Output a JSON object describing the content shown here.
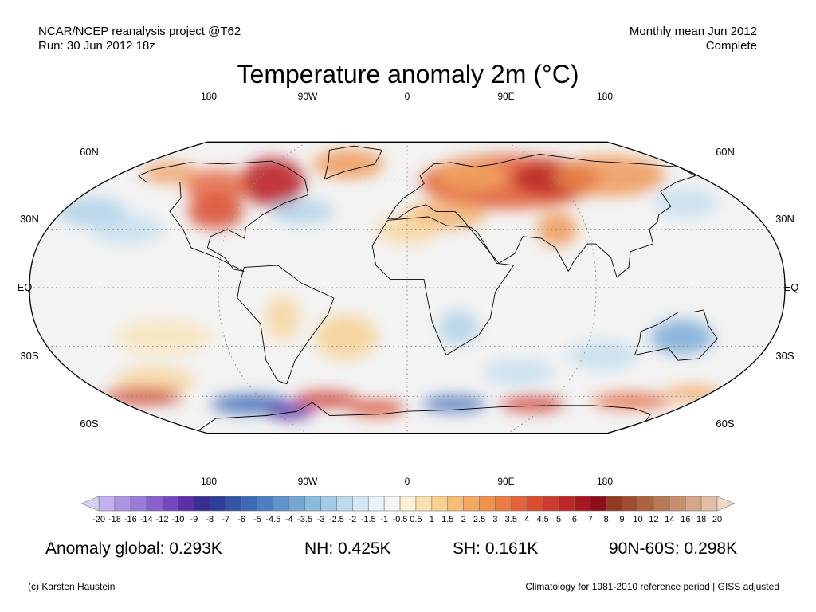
{
  "header": {
    "left_line1": "NCAR/NCEP reanalysis project @T62",
    "left_line2": "Run: 30 Jun 2012 18z",
    "right_line1": "Monthly mean Jun 2012",
    "right_line2": "Complete"
  },
  "title": "Temperature anomaly 2m (°C)",
  "map": {
    "projection": "Robinson (approx.), centered on 0°",
    "top_longitude_labels": [
      "180",
      "90W",
      "0",
      "90E",
      "180"
    ],
    "bottom_longitude_labels": [
      "180",
      "90W",
      "0",
      "90E",
      "180"
    ],
    "left_latitude_labels": [
      "60N",
      "30N",
      "EQ",
      "30S",
      "60S"
    ],
    "right_latitude_labels": [
      "60N",
      "30N",
      "EQ",
      "30S",
      "60S"
    ],
    "gridlines": "dotted",
    "colors": {
      "ocean_land_background": "#f2f2f2",
      "coastlines": "#000000"
    }
  },
  "colorbar": {
    "tick_labels": [
      "-20",
      "-18",
      "-16",
      "-14",
      "-12",
      "-10",
      "-9",
      "-8",
      "-7",
      "-6",
      "-5",
      "-4.5",
      "-4",
      "-3.5",
      "-3",
      "-2.5",
      "-2",
      "-1.5",
      "-1",
      "-0.5",
      "0.5",
      "1",
      "1.5",
      "2",
      "2.5",
      "3",
      "3.5",
      "4",
      "4.5",
      "5",
      "6",
      "7",
      "8",
      "9",
      "10",
      "12",
      "14",
      "16",
      "18",
      "20"
    ],
    "colors": [
      "#d8cef2",
      "#c2b1ec",
      "#ad94e4",
      "#9a7bdc",
      "#8860d0",
      "#7349c0",
      "#5a30a8",
      "#3a2e90",
      "#2e3f98",
      "#3355a8",
      "#3d69b6",
      "#4d7ec2",
      "#5f93cc",
      "#74a7d6",
      "#8bbadf",
      "#a3cbe6",
      "#bcdaee",
      "#d3e7f4",
      "#e8f2f9",
      "#f5f5f5",
      "#fbf0d4",
      "#fae1b0",
      "#f8d090",
      "#f6bd77",
      "#f3a862",
      "#ef9250",
      "#ea7b44",
      "#e3633b",
      "#d94d33",
      "#cd3a2e",
      "#bb2628",
      "#a51a22",
      "#8b0e1a",
      "#923a24",
      "#a04d30",
      "#ad6240",
      "#ba7856",
      "#c78f6e",
      "#d4a788",
      "#e2c0a6",
      "#f0d8c4"
    ]
  },
  "stats": {
    "global": "Anomaly global: 0.293K",
    "nh": "NH: 0.425K",
    "sh": "SH: 0.161K",
    "band": "90N-60S: 0.298K"
  },
  "footer": {
    "left": "(c) Karsten Haustein",
    "right": "Climatology for 1981-2010 reference period | GISS adjusted"
  }
}
